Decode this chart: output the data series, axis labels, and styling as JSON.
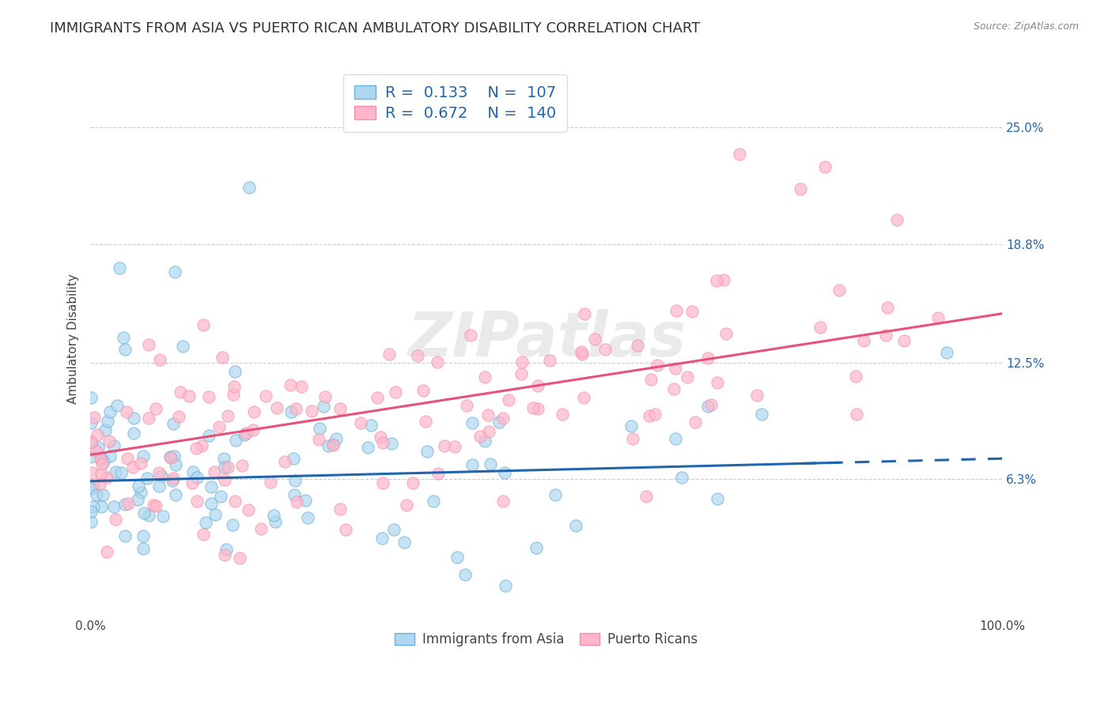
{
  "title": "IMMIGRANTS FROM ASIA VS PUERTO RICAN AMBULATORY DISABILITY CORRELATION CHART",
  "source": "Source: ZipAtlas.com",
  "ylabel": "Ambulatory Disability",
  "watermark": "ZIPatlas",
  "blue_R": 0.133,
  "blue_N": 107,
  "pink_R": 0.672,
  "pink_N": 140,
  "blue_fill_color": "#ADD8F0",
  "pink_fill_color": "#FFB6C8",
  "blue_edge_color": "#6BAED6",
  "pink_edge_color": "#F48FB1",
  "blue_line_color": "#2166AC",
  "pink_line_color": "#E8527A",
  "legend_blue_label": "Immigrants from Asia",
  "legend_pink_label": "Puerto Ricans",
  "xlim": [
    0,
    1
  ],
  "ylim": [
    -0.01,
    0.285
  ],
  "yticks": [
    0.063,
    0.125,
    0.188,
    0.25
  ],
  "ytick_labels": [
    "6.3%",
    "12.5%",
    "18.8%",
    "25.0%"
  ],
  "xtick_labels": [
    "0.0%",
    "100.0%"
  ],
  "title_fontsize": 13,
  "axis_label_fontsize": 11,
  "tick_fontsize": 11,
  "background_color": "#FFFFFF",
  "grid_color": "#CCCCCC",
  "title_color": "#333333",
  "source_color": "#888888",
  "legend_text_color": "#2166AC",
  "blue_line_intercept": 0.062,
  "blue_line_slope": 0.012,
  "pink_line_intercept": 0.076,
  "pink_line_slope": 0.075
}
